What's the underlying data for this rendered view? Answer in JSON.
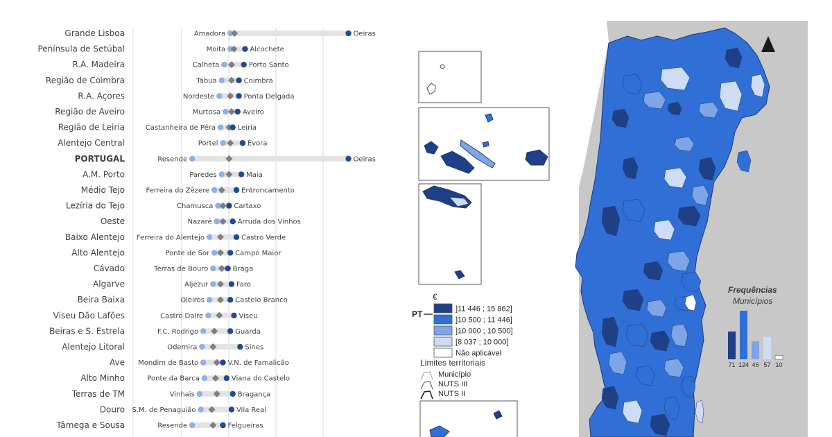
{
  "colors": {
    "muni_min": "#8cb2e8",
    "muni_max": "#1f4a96",
    "national": "#7f7f7f",
    "bar_track": "#e3e3e3",
    "sea": "#ffffff",
    "spain": "#c8c8c8",
    "class1": "#1f3f86",
    "class2": "#2f6fd6",
    "class3": "#7ea5e6",
    "class4": "#cfdcf5",
    "class5": "#ffffff"
  },
  "regions": [
    {
      "name": "Grande Lisboa",
      "min_label": "Amadora",
      "max_label": "Oeiras",
      "min": 10850,
      "nat": 11020,
      "max": 15650,
      "bold": false
    },
    {
      "name": "Península de Setúbal",
      "min_label": "Moita",
      "max_label": "Alcochete",
      "min": 10850,
      "nat": 11000,
      "max": 11450,
      "bold": false
    },
    {
      "name": "R.A. Madeira",
      "min_label": "Calheta",
      "max_label": "Porto Santo",
      "min": 10600,
      "nat": 10900,
      "max": 11400,
      "bold": false
    },
    {
      "name": "Região de Coimbra",
      "min_label": "Tábua",
      "max_label": "Coimbra",
      "min": 10500,
      "nat": 10900,
      "max": 11200,
      "bold": false
    },
    {
      "name": "R.A. Açores",
      "min_label": "Nordeste",
      "max_label": "Ponta Delgada",
      "min": 10400,
      "nat": 10850,
      "max": 11200,
      "bold": false
    },
    {
      "name": "Região de Aveiro",
      "min_label": "Murtosa",
      "max_label": "Aveiro",
      "min": 10650,
      "nat": 10900,
      "max": 11150,
      "bold": false
    },
    {
      "name": "Região de Leiria",
      "min_label": "Castanheira de Pêra",
      "max_label": "Leiria",
      "min": 10450,
      "nat": 10800,
      "max": 10950,
      "bold": false
    },
    {
      "name": "Alentejo Central",
      "min_label": "Portel",
      "max_label": "Évora",
      "min": 10550,
      "nat": 10850,
      "max": 11350,
      "bold": false
    },
    {
      "name": "PORTUGAL",
      "min_label": "Resende",
      "max_label": "Oeiras",
      "min": 9300,
      "nat": 10800,
      "max": 15650,
      "bold": true
    },
    {
      "name": "A.M. Porto",
      "min_label": "Paredes",
      "max_label": "Maia",
      "min": 10500,
      "nat": 10800,
      "max": 11300,
      "bold": false
    },
    {
      "name": "Médio Tejo",
      "min_label": "Ferreira do Zêzere",
      "max_label": "Entroncamento",
      "min": 10200,
      "nat": 10500,
      "max": 11100,
      "bold": false
    },
    {
      "name": "Lezíria do Tejo",
      "min_label": "Chamusca",
      "max_label": "Cartaxo",
      "min": 10350,
      "nat": 10550,
      "max": 10800,
      "bold": false
    },
    {
      "name": "Oeste",
      "min_label": "Nazaré",
      "max_label": "Arruda dos Vinhos",
      "min": 10300,
      "nat": 10550,
      "max": 10950,
      "bold": false
    },
    {
      "name": "Baixo Alentejo",
      "min_label": "Ferreira do Alentejo",
      "max_label": "Castro Verde",
      "min": 10000,
      "nat": 10450,
      "max": 11100,
      "bold": false
    },
    {
      "name": "Alto Alentejo",
      "min_label": "Ponte de Sor",
      "max_label": "Campo Maior",
      "min": 10200,
      "nat": 10450,
      "max": 10850,
      "bold": false
    },
    {
      "name": "Cávado",
      "min_label": "Terras de Bouro",
      "max_label": "Braga",
      "min": 10150,
      "nat": 10500,
      "max": 10750,
      "bold": false
    },
    {
      "name": "Algarve",
      "min_label": "Aljezur",
      "max_label": "Faro",
      "min": 10150,
      "nat": 10450,
      "max": 10900,
      "bold": false
    },
    {
      "name": "Beira Baixa",
      "min_label": "Oleiros",
      "max_label": "Castelo Branco",
      "min": 10000,
      "nat": 10450,
      "max": 10850,
      "bold": false
    },
    {
      "name": "Viseu Dão Lafões",
      "min_label": "Castro Daire",
      "max_label": "Viseu",
      "min": 9950,
      "nat": 10400,
      "max": 11000,
      "bold": false
    },
    {
      "name": "Beiras e S. Estrela",
      "min_label": "F.C. Rodrigo",
      "max_label": "Guarda",
      "min": 9750,
      "nat": 10200,
      "max": 10850,
      "bold": false
    },
    {
      "name": "Alentejo Litoral",
      "min_label": "Odemira",
      "max_label": "Sines",
      "min": 9700,
      "nat": 10150,
      "max": 11250,
      "bold": false
    },
    {
      "name": "Ave",
      "min_label": "Mondim de Basto",
      "max_label": "V.N. de Famalicão",
      "min": 9750,
      "nat": 10300,
      "max": 10550,
      "bold": false
    },
    {
      "name": "Alto Minho",
      "min_label": "Ponte da Barca",
      "max_label": "Viana do Castelo",
      "min": 9800,
      "nat": 10250,
      "max": 10700,
      "bold": false
    },
    {
      "name": "Terras de TM",
      "min_label": "Vinhais",
      "max_label": "Bragança",
      "min": 9600,
      "nat": 10300,
      "max": 10950,
      "bold": false
    },
    {
      "name": "Douro",
      "min_label": "S.M. de Penaguião",
      "max_label": "Vila Real",
      "min": 9650,
      "nat": 10100,
      "max": 10900,
      "bold": false
    },
    {
      "name": "Tâmega e Sousa",
      "min_label": "Resende",
      "max_label": "Felgueiras",
      "min": 9300,
      "nat": 10150,
      "max": 10550,
      "bold": false
    }
  ],
  "legend": {
    "currency": "€",
    "pt_label": "PT",
    "classes": [
      {
        "label": "]11 446 ; 15 862]",
        "color": "#1f3f86"
      },
      {
        "label": "]10 500 ; 11 446]",
        "color": "#2f6fd6"
      },
      {
        "label": "]10 000 ; 10 500]",
        "color": "#7ea5e6"
      },
      {
        "label": "[8 037 ; 10 000]",
        "color": "#cfdcf5"
      },
      {
        "label": "Não aplicável",
        "color": "#ffffff"
      }
    ],
    "limits_title": "Limites territoriais",
    "limits": [
      "Município",
      "NUTS III",
      "NUTS II"
    ]
  },
  "frequencies": {
    "title": "Frequências",
    "subtitle": "Municípios",
    "values": [
      71,
      124,
      46,
      57,
      10
    ],
    "colors": [
      "#1f3f86",
      "#2f6fd6",
      "#7ea5e6",
      "#cfdcf5",
      "#ffffff"
    ]
  },
  "north_arrow": "north-arrow-icon"
}
